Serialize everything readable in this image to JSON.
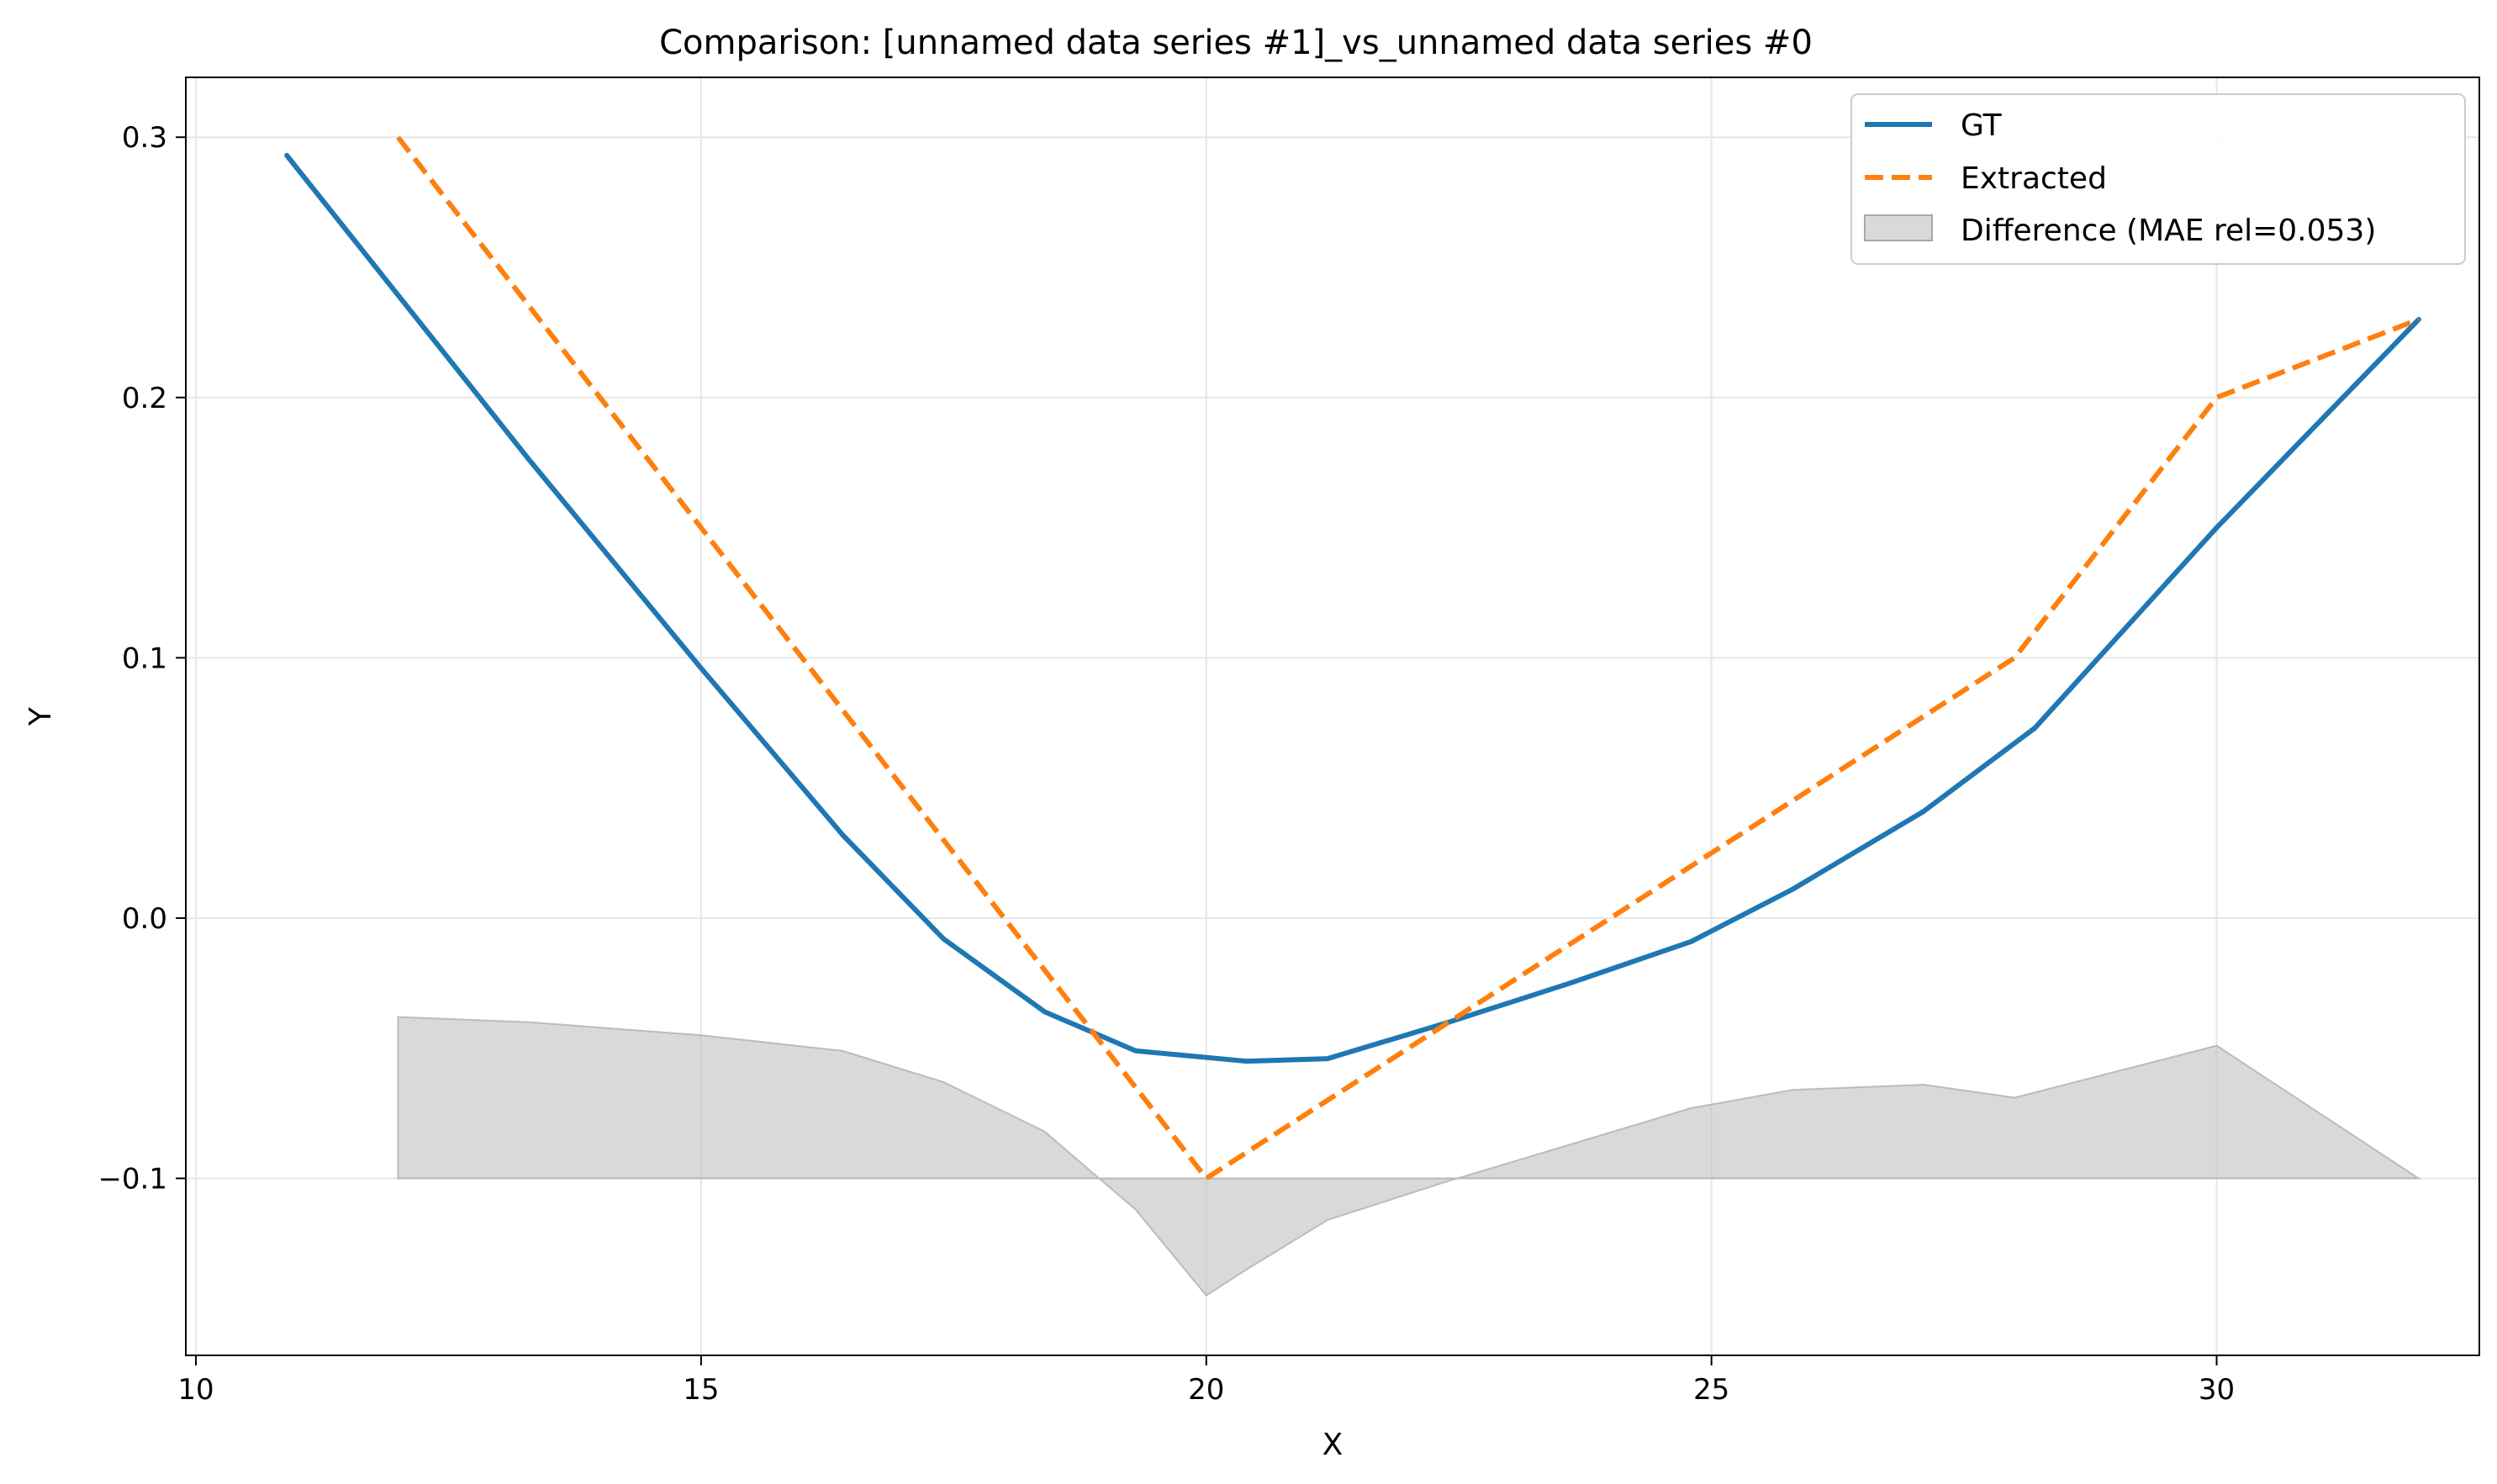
{
  "chart_data": {
    "type": "line",
    "title": "Comparison: [unnamed data series #1]_vs_unnamed data series #0",
    "xlabel": "X",
    "ylabel": "Y",
    "xlim": [
      9.9,
      32.6
    ],
    "ylim": [
      -0.168,
      0.323
    ],
    "xticks": [
      10,
      15,
      20,
      25,
      30
    ],
    "xtick_labels": [
      "10",
      "15",
      "20",
      "25",
      "30"
    ],
    "yticks": [
      -0.1,
      0.0,
      0.1,
      0.2,
      0.3
    ],
    "ytick_labels": [
      "−0.1",
      "0.0",
      "0.1",
      "0.2",
      "0.3"
    ],
    "grid": true,
    "legend_position": "top-right",
    "series": [
      {
        "name": "GT",
        "style": "solid",
        "color": "#1f77b4",
        "x": [
          10.9,
          13.3,
          15.0,
          16.4,
          17.4,
          18.4,
          19.3,
          20.4,
          21.2,
          22.4,
          23.6,
          24.8,
          25.8,
          27.1,
          28.2,
          30.0,
          32.0
        ],
        "y": [
          0.293,
          0.176,
          0.096,
          0.032,
          -0.008,
          -0.036,
          -0.051,
          -0.055,
          -0.054,
          -0.04,
          -0.025,
          -0.009,
          0.011,
          0.041,
          0.073,
          0.15,
          0.23
        ]
      },
      {
        "name": "Extracted",
        "style": "dashed",
        "color": "#ff7f0e",
        "x": [
          12.0,
          20.0,
          28.0,
          30.0,
          32.0
        ],
        "y": [
          0.3,
          -0.1,
          0.1,
          0.2,
          0.23
        ]
      }
    ],
    "difference": {
      "name": "Difference (MAE rel=0.053)",
      "color": "#bfbfbf",
      "baseline": -0.1,
      "x": [
        12.0,
        13.3,
        15.0,
        16.4,
        17.4,
        18.4,
        19.3,
        20.0,
        20.4,
        21.2,
        22.4,
        23.6,
        24.8,
        25.8,
        27.1,
        28.0,
        28.2,
        30.0,
        32.0
      ],
      "y": [
        -0.038,
        -0.04,
        -0.045,
        -0.051,
        -0.063,
        -0.082,
        -0.112,
        -0.145,
        -0.135,
        -0.116,
        -0.101,
        -0.087,
        -0.073,
        -0.066,
        -0.064,
        -0.069,
        -0.067,
        -0.049,
        -0.1
      ]
    }
  }
}
